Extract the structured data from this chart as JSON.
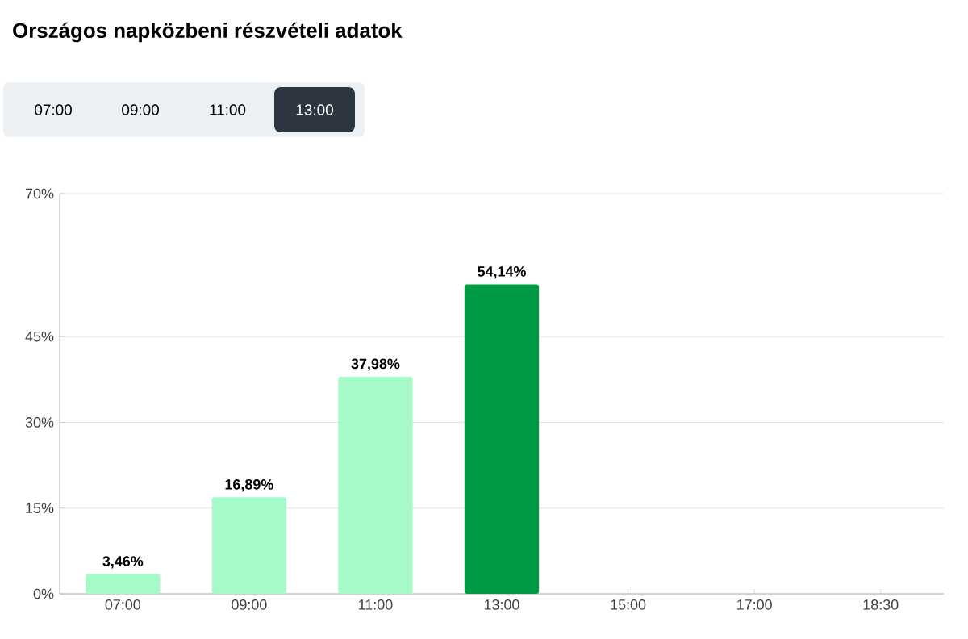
{
  "chart_data": {
    "type": "bar",
    "title": "Országos napközbeni részvételi adatok",
    "annotations": [
      "07:00",
      "09:00",
      "11:00",
      "13:00"
    ],
    "categories": [
      "07:00",
      "09:00",
      "11:00",
      "13:00",
      "15:00",
      "17:00",
      "18:30"
    ],
    "values": [
      3.46,
      16.89,
      37.98,
      54.14,
      null,
      null,
      null
    ],
    "value_labels": [
      "3,46%",
      "16,89%",
      "37,98%",
      "54,14%",
      null,
      null,
      null
    ],
    "colors": [
      "#a6f9c8",
      "#a6f9c8",
      "#a6f9c8",
      "#009a44",
      "#a6f9c8",
      "#a6f9c8",
      "#a6f9c8"
    ],
    "ylim": [
      0,
      70
    ],
    "yticks": [
      {
        "value": 0,
        "label": "0%"
      },
      {
        "value": 15,
        "label": "15%"
      },
      {
        "value": 30,
        "label": "30%"
      },
      {
        "value": 45,
        "label": "45%"
      },
      {
        "value": 70,
        "label": "70%"
      }
    ],
    "grid": "y"
  }
}
